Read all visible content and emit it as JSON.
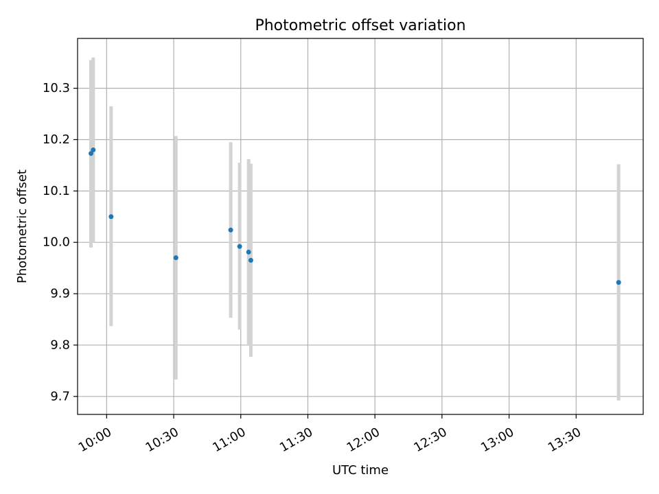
{
  "chart_data": {
    "type": "scatter",
    "title": "Photometric offset variation",
    "xlabel": "UTC time",
    "ylabel": "Photometric offset",
    "xlim": [
      "09:47",
      "14:00"
    ],
    "ylim": [
      9.665,
      10.397
    ],
    "grid": true,
    "x_ticks": [
      "10:00",
      "10:30",
      "11:00",
      "11:30",
      "12:00",
      "12:30",
      "13:00",
      "13:30"
    ],
    "y_ticks": [
      9.7,
      9.8,
      9.9,
      10.0,
      10.1,
      10.2,
      10.3
    ],
    "series": [
      {
        "marker": "dot",
        "color": "#1f77b4",
        "error_color": "#d3d3d3",
        "points": [
          {
            "x": "09:53:00",
            "y": 10.173,
            "yerr_low": 9.99,
            "yerr_high": 10.355
          },
          {
            "x": "09:54:00",
            "y": 10.18,
            "yerr_low": 10.0,
            "yerr_high": 10.36
          },
          {
            "x": "10:02:00",
            "y": 10.05,
            "yerr_low": 9.837,
            "yerr_high": 10.265
          },
          {
            "x": "10:31:00",
            "y": 9.97,
            "yerr_low": 9.733,
            "yerr_high": 10.207
          },
          {
            "x": "10:55:30",
            "y": 10.024,
            "yerr_low": 9.853,
            "yerr_high": 10.195
          },
          {
            "x": "10:59:30",
            "y": 9.992,
            "yerr_low": 9.83,
            "yerr_high": 10.155
          },
          {
            "x": "11:03:30",
            "y": 9.981,
            "yerr_low": 9.8,
            "yerr_high": 10.162
          },
          {
            "x": "11:04:30",
            "y": 9.965,
            "yerr_low": 9.777,
            "yerr_high": 10.153
          },
          {
            "x": "13:49:00",
            "y": 9.922,
            "yerr_low": 9.692,
            "yerr_high": 10.152
          }
        ]
      }
    ]
  }
}
